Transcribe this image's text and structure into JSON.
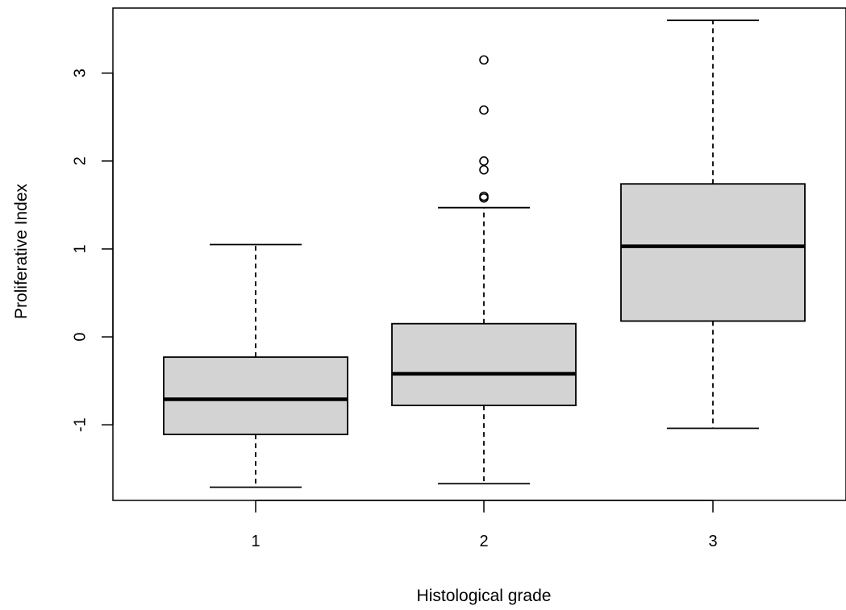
{
  "chart_data": {
    "type": "boxplot",
    "title": "",
    "xlabel": "Histological grade",
    "ylabel": "Proliferative Index",
    "categories": [
      "1",
      "2",
      "3"
    ],
    "yticks": [
      -1,
      0,
      1,
      2,
      3
    ],
    "ylim": [
      -1.86,
      3.74
    ],
    "grid": false,
    "legend": "none",
    "box_fill": "#d3d3d3",
    "line_color": "#000000",
    "boxes": [
      {
        "category": "1",
        "whisker_low": -1.71,
        "q1": -1.11,
        "median": -0.71,
        "q3": -0.23,
        "whisker_high": 1.05,
        "outliers": []
      },
      {
        "category": "2",
        "whisker_low": -1.67,
        "q1": -0.78,
        "median": -0.42,
        "q3": 0.15,
        "whisker_high": 1.47,
        "outliers": [
          1.58,
          1.6,
          1.9,
          2.0,
          2.58,
          3.15
        ]
      },
      {
        "category": "3",
        "whisker_low": -1.04,
        "q1": 0.18,
        "median": 1.03,
        "q3": 1.74,
        "whisker_high": 3.6,
        "outliers": []
      }
    ]
  }
}
